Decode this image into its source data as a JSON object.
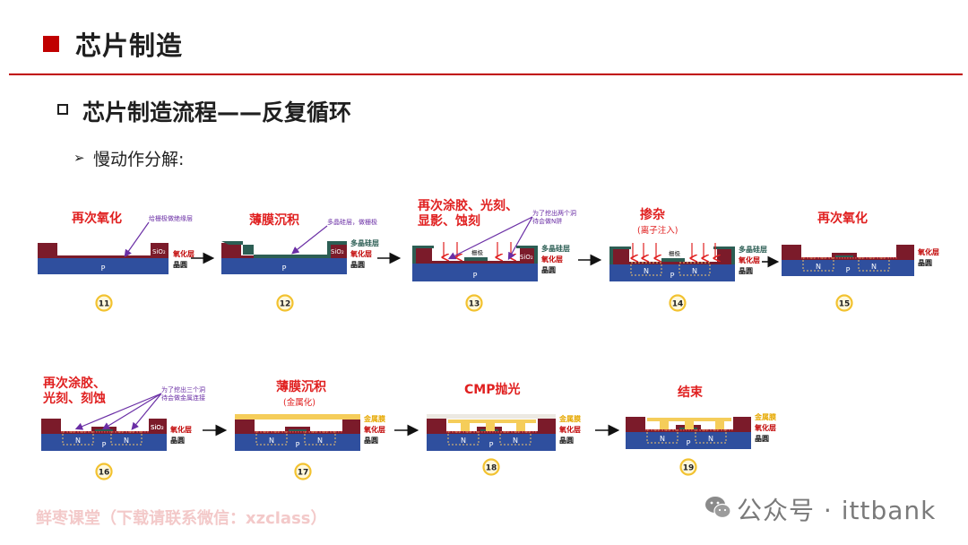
{
  "header": {
    "title": "芯片制造",
    "subtitle": "芯片制造流程——反复循环",
    "bullet": "慢动作分解:"
  },
  "colors": {
    "accent_red": "#c00000",
    "wafer_blue": "#2f4f9e",
    "oxide_maroon": "#7b1b2a",
    "poly_green": "#2c5e54",
    "metal_yellow": "#f5cd5a",
    "label_purple": "#6a2ea5"
  },
  "steps": [
    {
      "number": "11",
      "title": [
        "再次氧化"
      ],
      "note": "给栅极做绝缘层",
      "layers": [
        "SiO₂",
        "氧化层",
        "晶圆"
      ],
      "substrate": "P"
    },
    {
      "number": "12",
      "title": [
        "薄膜沉积"
      ],
      "note": "多晶硅层，做栅极",
      "layers": [
        "多晶硅层",
        "氧化层",
        "晶圆"
      ],
      "sio2": "SiO₂",
      "substrate": "P"
    },
    {
      "number": "13",
      "title": [
        "再次涂胶、光刻、",
        "显影、蚀刻"
      ],
      "note": "为了挖出两个洞 待会做N阱",
      "gate": "栅极",
      "layers": [
        "多晶硅层",
        "氧化层",
        "晶圆"
      ],
      "sio2": "SiO₂",
      "substrate": "P"
    },
    {
      "number": "14",
      "title": [
        "掺杂"
      ],
      "subtitle": "(离子注入)",
      "gate": "栅极",
      "layers": [
        "多晶硅层",
        "氧化层",
        "晶圆"
      ],
      "wells": [
        "N",
        "N"
      ],
      "substrate": "P"
    },
    {
      "number": "15",
      "title": [
        "再次氧化"
      ],
      "layers": [
        "氧化层",
        "晶圆"
      ],
      "wells": [
        "N",
        "N"
      ],
      "substrate": "P"
    },
    {
      "number": "16",
      "title": [
        "再次涂胶、",
        "光刻、刻蚀"
      ],
      "note": "为了挖出三个洞 待会做金属连接",
      "layers": [
        "SiO₂",
        "氧化层",
        "晶圆"
      ],
      "wells": [
        "N",
        "N"
      ],
      "substrate": "P"
    },
    {
      "number": "17",
      "title": [
        "薄膜沉积"
      ],
      "subtitle": "(金属化)",
      "layers": [
        "金属膜",
        "氧化层",
        "晶圆"
      ],
      "wells": [
        "N",
        "N"
      ],
      "substrate": "P"
    },
    {
      "number": "18",
      "title": [
        "CMP抛光"
      ],
      "layers": [
        "金属膜",
        "氧化层",
        "晶圆"
      ],
      "wells": [
        "N",
        "N"
      ],
      "substrate": "P"
    },
    {
      "number": "19",
      "title": [
        "结束"
      ],
      "layers": [
        "金属膜",
        "氧化层",
        "晶圆"
      ],
      "wells": [
        "N",
        "N"
      ],
      "substrate": "P"
    }
  ],
  "watermark": {
    "left": "鲜枣课堂（下载请联系微信：xzclass）",
    "right": "公众号 · ittbank"
  }
}
